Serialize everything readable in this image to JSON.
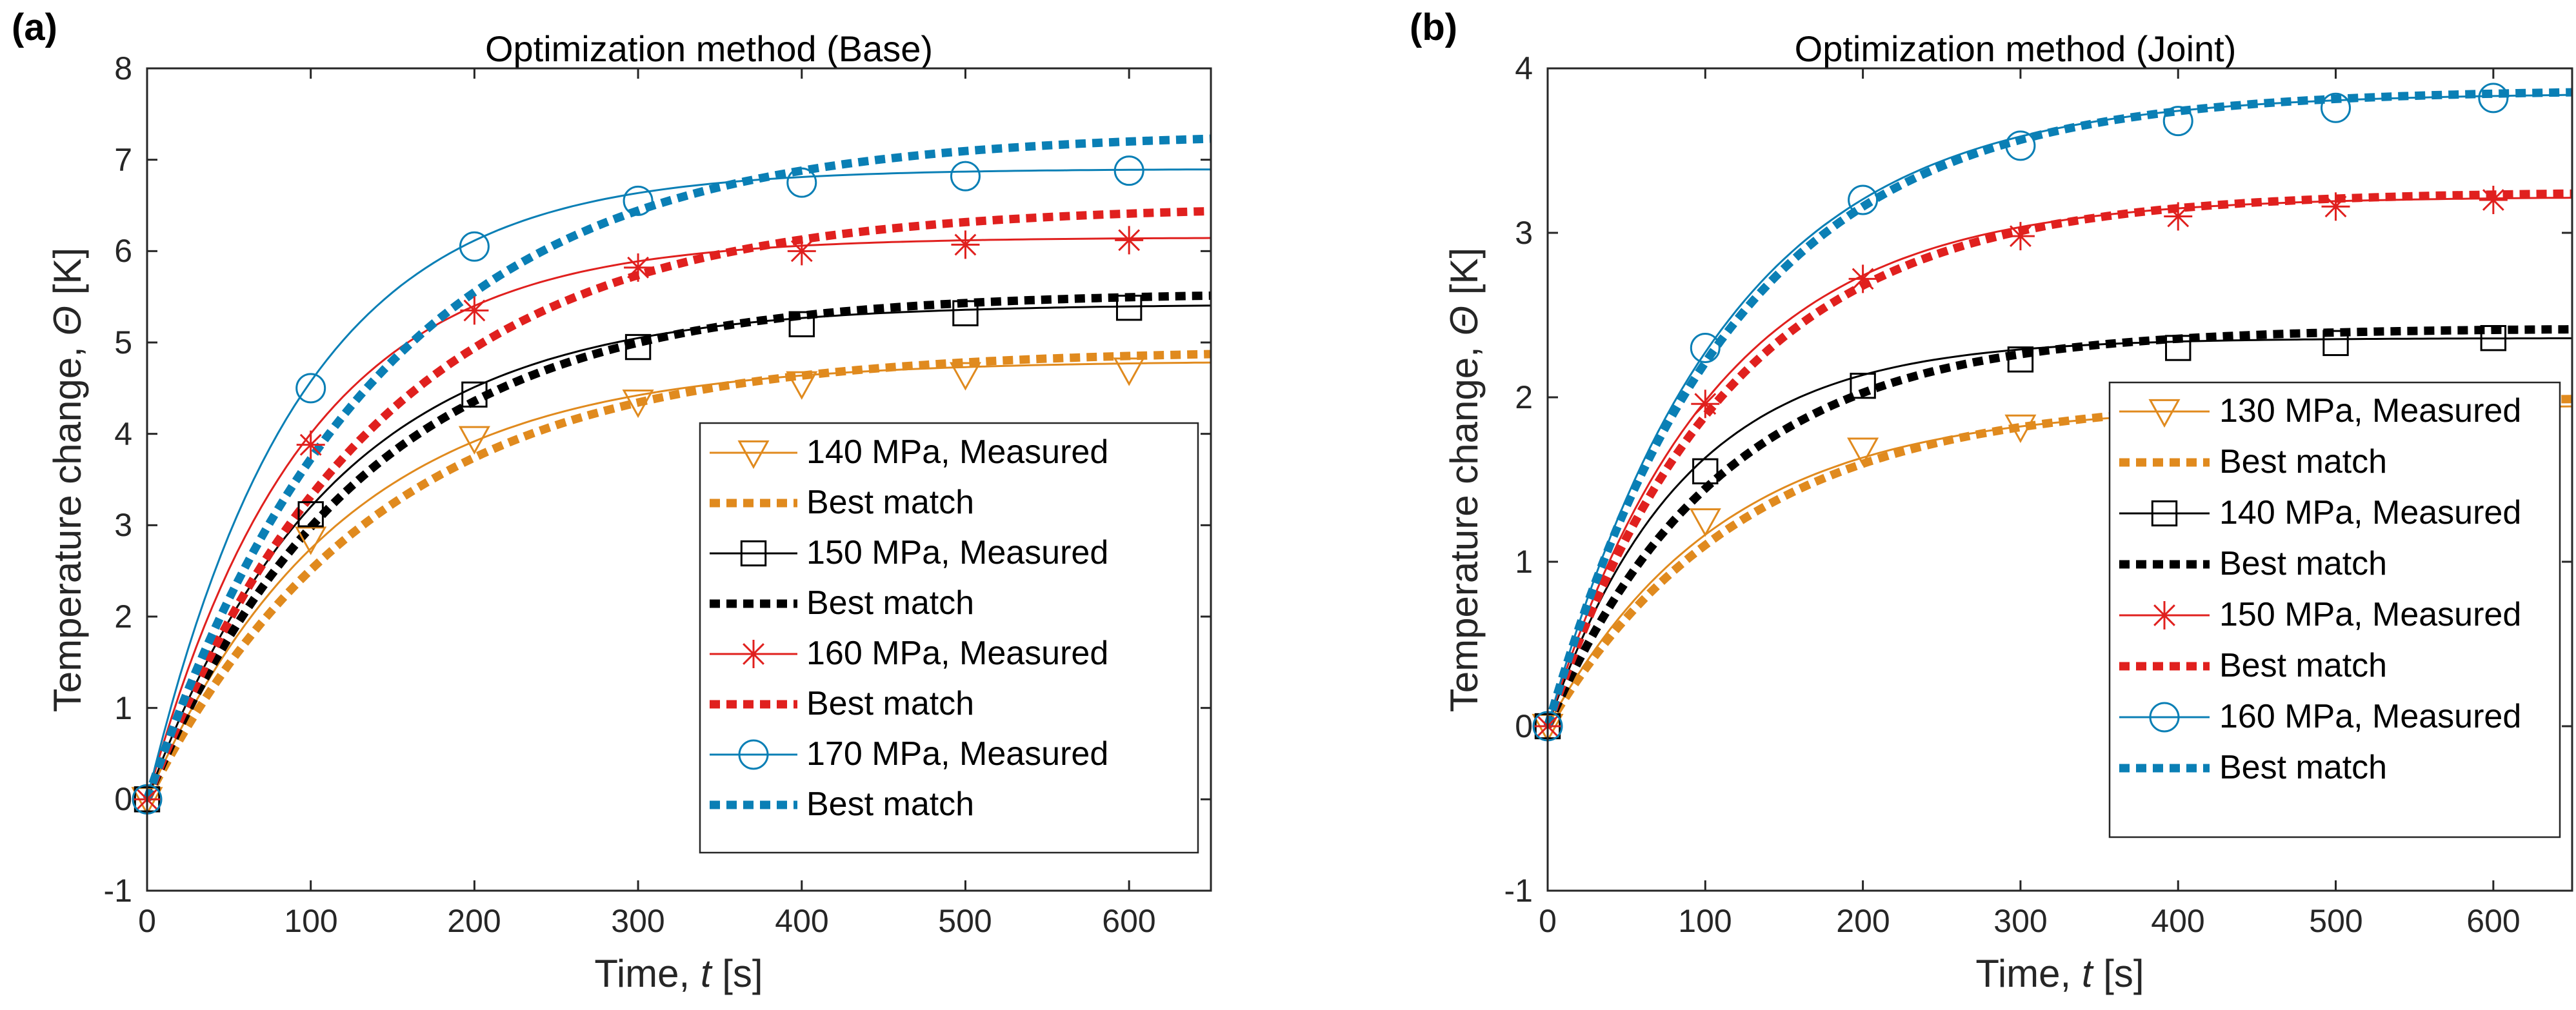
{
  "chart_data": [
    {
      "type": "line",
      "panel_label": "(a)",
      "title": "Optimization method (Base)",
      "xlabel": "Time, ",
      "xlabel_symbol": "t",
      "xlabel_unit": " [s]",
      "ylabel": "Temperature change, ",
      "ylabel_symbol": "Θ",
      "ylabel_unit": " [K]",
      "xlim": [
        0,
        650
      ],
      "ylim": [
        -1,
        8
      ],
      "xticks": [
        0,
        100,
        200,
        300,
        400,
        500,
        600
      ],
      "yticks": [
        -1,
        0,
        1,
        2,
        3,
        4,
        5,
        6,
        7,
        8
      ],
      "legend_position": "bottom-right",
      "series": [
        {
          "name": "140 MPa, Measured",
          "kind": "measured",
          "color": "#E08A1E",
          "marker": "triangle-down",
          "asymptote": 4.8,
          "tau": 118,
          "marker_x": [
            0,
            100,
            200,
            300,
            400,
            500,
            600
          ],
          "marker_y": [
            0,
            2.85,
            3.95,
            4.35,
            4.55,
            4.65,
            4.7
          ]
        },
        {
          "name": "Best match",
          "kind": "fit",
          "color": "#E08A1E",
          "asymptote": 4.92,
          "tau": 140
        },
        {
          "name": "150 MPa, Measured",
          "kind": "measured",
          "color": "#000000",
          "marker": "square",
          "asymptote": 5.42,
          "tau": 112,
          "marker_x": [
            0,
            100,
            200,
            300,
            400,
            500,
            600
          ],
          "marker_y": [
            0,
            3.12,
            4.43,
            4.95,
            5.2,
            5.32,
            5.38
          ]
        },
        {
          "name": "Best match",
          "kind": "fit",
          "color": "#000000",
          "asymptote": 5.55,
          "tau": 130
        },
        {
          "name": "160 MPa, Measured",
          "kind": "measured",
          "color": "#E0201E",
          "marker": "asterisk",
          "asymptote": 6.15,
          "tau": 95,
          "marker_x": [
            0,
            100,
            200,
            300,
            400,
            500,
            600
          ],
          "marker_y": [
            0,
            3.88,
            5.35,
            5.82,
            6.0,
            6.07,
            6.12
          ]
        },
        {
          "name": "Best match",
          "kind": "fit",
          "color": "#E0201E",
          "asymptote": 6.5,
          "tau": 140
        },
        {
          "name": "170 MPa, Measured",
          "kind": "measured",
          "color": "#0A7FB5",
          "marker": "circle",
          "asymptote": 6.9,
          "tau": 92,
          "marker_x": [
            0,
            100,
            200,
            300,
            400,
            500,
            600
          ],
          "marker_y": [
            0,
            4.5,
            6.05,
            6.55,
            6.75,
            6.82,
            6.88
          ]
        },
        {
          "name": "Best match",
          "kind": "fit",
          "color": "#0A7FB5",
          "asymptote": 7.3,
          "tau": 140
        }
      ]
    },
    {
      "type": "line",
      "panel_label": "(b)",
      "title": "Optimization method (Joint)",
      "xlabel": "Time, ",
      "xlabel_symbol": "t",
      "xlabel_unit": " [s]",
      "ylabel": "Temperature change, ",
      "ylabel_symbol": "Θ",
      "ylabel_unit": " [K]",
      "xlim": [
        0,
        650
      ],
      "ylim": [
        -1,
        4
      ],
      "xticks": [
        0,
        100,
        200,
        300,
        400,
        500,
        600
      ],
      "yticks": [
        -1,
        0,
        1,
        2,
        3,
        4
      ],
      "legend_position": "bottom-right",
      "series": [
        {
          "name": "130 MPa, Measured",
          "kind": "measured",
          "color": "#E08A1E",
          "marker": "triangle-down",
          "asymptote": 1.95,
          "tau": 110,
          "marker_x": [
            0,
            100,
            200,
            300,
            400,
            500,
            600
          ],
          "marker_y": [
            0,
            1.25,
            1.68,
            1.82,
            1.9,
            1.93,
            1.95
          ]
        },
        {
          "name": "Best match",
          "kind": "fit",
          "color": "#E08A1E",
          "asymptote": 2.0,
          "tau": 125
        },
        {
          "name": "140 MPa, Measured",
          "kind": "measured",
          "color": "#000000",
          "marker": "square",
          "asymptote": 2.36,
          "tau": 85,
          "marker_x": [
            0,
            100,
            200,
            300,
            400,
            500,
            600
          ],
          "marker_y": [
            0,
            1.55,
            2.07,
            2.23,
            2.3,
            2.33,
            2.36
          ]
        },
        {
          "name": "Best match",
          "kind": "fit",
          "color": "#000000",
          "asymptote": 2.42,
          "tau": 110
        },
        {
          "name": "150 MPa, Measured",
          "kind": "measured",
          "color": "#E0201E",
          "marker": "asterisk",
          "asymptote": 3.22,
          "tau": 105,
          "marker_x": [
            0,
            100,
            200,
            300,
            400,
            500,
            600
          ],
          "marker_y": [
            0,
            1.96,
            2.72,
            2.98,
            3.1,
            3.16,
            3.2
          ]
        },
        {
          "name": "Best match",
          "kind": "fit",
          "color": "#E0201E",
          "asymptote": 3.25,
          "tau": 115
        },
        {
          "name": "160 MPa, Measured",
          "kind": "measured",
          "color": "#0A7FB5",
          "marker": "circle",
          "asymptote": 3.85,
          "tau": 112,
          "marker_x": [
            0,
            100,
            200,
            300,
            400,
            500,
            600
          ],
          "marker_y": [
            0,
            2.3,
            3.2,
            3.53,
            3.68,
            3.76,
            3.82
          ]
        },
        {
          "name": "Best match",
          "kind": "fit",
          "color": "#0A7FB5",
          "asymptote": 3.87,
          "tau": 118
        }
      ]
    }
  ]
}
